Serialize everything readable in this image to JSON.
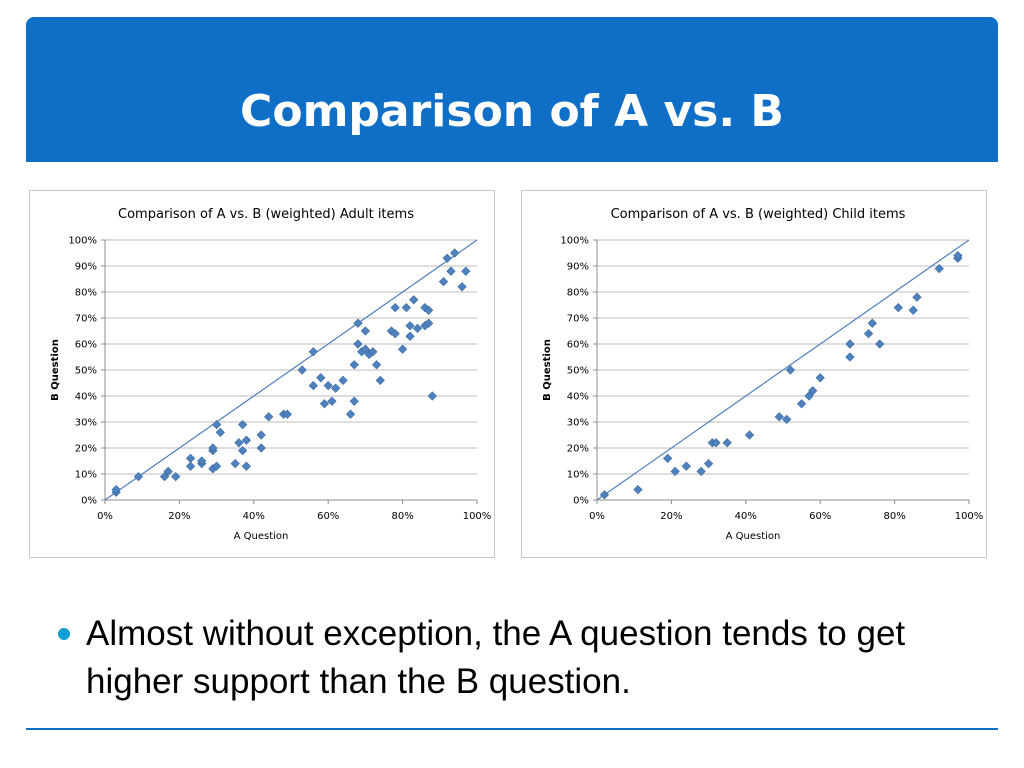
{
  "slide": {
    "title": "Comparison of A vs. B",
    "bullet": "Almost without exception, the A question tends to get higher support than the B question.",
    "colors": {
      "title_bar": "#0f6fc6",
      "bullet": "#0f9ed5",
      "marker": "#4f81bd",
      "line": "#4f81bd"
    }
  },
  "chart_data": [
    {
      "type": "scatter",
      "title": "Comparison of A vs. B (weighted) Adult items",
      "xlabel": "A Question",
      "ylabel": "B Question",
      "xlim": [
        0,
        100
      ],
      "ylim": [
        0,
        100
      ],
      "xticks": [
        "0%",
        "20%",
        "40%",
        "60%",
        "80%",
        "100%"
      ],
      "yticks": [
        "0%",
        "10%",
        "20%",
        "30%",
        "40%",
        "50%",
        "60%",
        "70%",
        "80%",
        "90%",
        "100%"
      ],
      "grid": "horizontal",
      "reference_line": [
        [
          0,
          0
        ],
        [
          100,
          100
        ]
      ],
      "x": [
        3,
        3,
        9,
        16,
        17,
        19,
        23,
        23,
        26,
        26,
        29,
        29,
        29,
        30,
        30,
        31,
        35,
        36,
        37,
        37,
        38,
        38,
        42,
        42,
        44,
        48,
        49,
        53,
        56,
        56,
        58,
        59,
        60,
        61,
        62,
        64,
        66,
        67,
        67,
        68,
        68,
        69,
        70,
        70,
        71,
        72,
        73,
        74,
        77,
        78,
        78,
        80,
        81,
        82,
        82,
        83,
        84,
        86,
        86,
        87,
        87,
        88,
        91,
        92,
        93,
        94,
        96,
        97
      ],
      "y": [
        3,
        4,
        9,
        9,
        11,
        9,
        13,
        16,
        14,
        15,
        12,
        19,
        20,
        29,
        13,
        26,
        14,
        22,
        19,
        29,
        13,
        23,
        20,
        25,
        32,
        33,
        33,
        50,
        44,
        57,
        47,
        37,
        44,
        38,
        43,
        46,
        33,
        38,
        52,
        68,
        60,
        57,
        65,
        58,
        56,
        57,
        52,
        46,
        65,
        74,
        64,
        58,
        74,
        67,
        63,
        77,
        66,
        67,
        74,
        73,
        68,
        40,
        84,
        93,
        88,
        95,
        82,
        88
      ]
    },
    {
      "type": "scatter",
      "title": "Comparison of A vs. B (weighted) Child items",
      "xlabel": "A Question",
      "ylabel": "B Question",
      "xlim": [
        0,
        100
      ],
      "ylim": [
        0,
        100
      ],
      "xticks": [
        "0%",
        "20%",
        "40%",
        "60%",
        "80%",
        "100%"
      ],
      "yticks": [
        "0%",
        "10%",
        "20%",
        "30%",
        "40%",
        "50%",
        "60%",
        "70%",
        "80%",
        "90%",
        "100%"
      ],
      "grid": "horizontal",
      "reference_line": [
        [
          0,
          0
        ],
        [
          100,
          100
        ]
      ],
      "x": [
        2,
        11,
        19,
        21,
        24,
        28,
        30,
        31,
        32,
        35,
        41,
        49,
        51,
        52,
        55,
        57,
        58,
        60,
        68,
        68,
        73,
        74,
        76,
        81,
        85,
        86,
        92,
        97,
        97
      ],
      "y": [
        2,
        4,
        16,
        11,
        13,
        11,
        14,
        22,
        22,
        22,
        25,
        32,
        31,
        50,
        37,
        40,
        42,
        47,
        55,
        60,
        64,
        68,
        60,
        74,
        73,
        78,
        89,
        93,
        94
      ]
    }
  ]
}
